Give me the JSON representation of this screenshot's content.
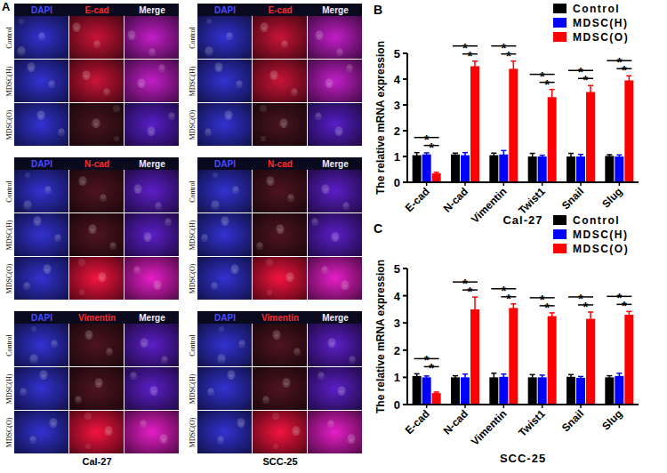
{
  "panel_labels": [
    "A",
    "B",
    "C"
  ],
  "panel_a": {
    "cell_lines": [
      "Cal-27",
      "SCC-25"
    ],
    "blocks": [
      {
        "columns": [
          "DAPI",
          "E-cad",
          "Merge"
        ],
        "rows": [
          "Control",
          "MDSC(H)",
          "MDSC(O)"
        ]
      },
      {
        "columns": [
          "DAPI",
          "N-cad",
          "Merge"
        ],
        "rows": [
          "Control",
          "MDSC(H)",
          "MDSC(O)"
        ]
      },
      {
        "columns": [
          "DAPI",
          "Vimentin",
          "Merge"
        ],
        "rows": [
          "Control",
          "MDSC(H)",
          "MDSC(O)"
        ]
      }
    ]
  },
  "chart_data": [
    {
      "type": "bar",
      "x_label": "Cal-27",
      "y_label": "The relative mRNA expression",
      "categories": [
        "E-cad",
        "N-cad",
        "Vimentin",
        "Twist1",
        "Snail",
        "Slug"
      ],
      "series": [
        {
          "name": "Control",
          "color": "#000000",
          "values": [
            1.05,
            1.08,
            1.05,
            1.0,
            1.0,
            1.02
          ],
          "errors": [
            0.1,
            0.05,
            0.08,
            0.12,
            0.12,
            0.05
          ]
        },
        {
          "name": "MDSC(H)",
          "color": "#0000ff",
          "values": [
            1.08,
            1.05,
            1.08,
            1.0,
            1.0,
            1.0
          ],
          "errors": [
            0.06,
            0.1,
            0.15,
            0.05,
            0.08,
            0.06
          ]
        },
        {
          "name": "MDSC(O)",
          "color": "#ff0000",
          "values": [
            0.35,
            4.5,
            4.4,
            3.3,
            3.5,
            3.95
          ],
          "errors": [
            0.04,
            0.2,
            0.3,
            0.3,
            0.25,
            0.18
          ]
        }
      ],
      "ylim": [
        0,
        5
      ],
      "yticks": [
        0,
        1,
        2,
        3,
        4,
        5
      ],
      "grid": false,
      "legend": "top-right",
      "significance": [
        {
          "category": "E-cad",
          "groups": [
            "MDSC(H)",
            "MDSC(O)"
          ],
          "label": "*"
        },
        {
          "category": "E-cad",
          "groups": [
            "Control",
            "MDSC(O)"
          ],
          "label": "*"
        },
        {
          "category": "N-cad",
          "groups": [
            "MDSC(H)",
            "MDSC(O)"
          ],
          "label": "*"
        },
        {
          "category": "N-cad",
          "groups": [
            "Control",
            "MDSC(O)"
          ],
          "label": "*"
        },
        {
          "category": "Vimentin",
          "groups": [
            "MDSC(H)",
            "MDSC(O)"
          ],
          "label": "*"
        },
        {
          "category": "Vimentin",
          "groups": [
            "Control",
            "MDSC(O)"
          ],
          "label": "*"
        },
        {
          "category": "Twist1",
          "groups": [
            "MDSC(H)",
            "MDSC(O)"
          ],
          "label": "*"
        },
        {
          "category": "Twist1",
          "groups": [
            "Control",
            "MDSC(O)"
          ],
          "label": "*"
        },
        {
          "category": "Snail",
          "groups": [
            "MDSC(H)",
            "MDSC(O)"
          ],
          "label": "*"
        },
        {
          "category": "Snail",
          "groups": [
            "Control",
            "MDSC(O)"
          ],
          "label": "*"
        },
        {
          "category": "Slug",
          "groups": [
            "MDSC(H)",
            "MDSC(O)"
          ],
          "label": "*"
        },
        {
          "category": "Slug",
          "groups": [
            "Control",
            "MDSC(O)"
          ],
          "label": "*"
        }
      ]
    },
    {
      "type": "bar",
      "x_label": "SCC-25",
      "y_label": "The relative mRNA expression",
      "categories": [
        "E-cad",
        "N-cad",
        "Vimentin",
        "Twist1",
        "Snail",
        "Slug"
      ],
      "series": [
        {
          "name": "Control",
          "color": "#000000",
          "values": [
            1.05,
            1.0,
            1.0,
            1.0,
            1.02,
            1.0
          ],
          "errors": [
            0.08,
            0.06,
            0.15,
            0.1,
            0.08,
            0.06
          ]
        },
        {
          "name": "MDSC(H)",
          "color": "#0000ff",
          "values": [
            1.0,
            1.0,
            1.02,
            1.0,
            0.98,
            1.05
          ],
          "errors": [
            0.05,
            0.12,
            0.1,
            0.08,
            0.05,
            0.1
          ]
        },
        {
          "name": "MDSC(O)",
          "color": "#ff0000",
          "values": [
            0.42,
            3.5,
            3.55,
            3.25,
            3.15,
            3.3
          ],
          "errors": [
            0.04,
            0.45,
            0.15,
            0.12,
            0.25,
            0.12
          ]
        }
      ],
      "ylim": [
        0,
        5
      ],
      "yticks": [
        0,
        1,
        2,
        3,
        4,
        5
      ],
      "grid": false,
      "legend": "top-right",
      "significance": [
        {
          "category": "E-cad",
          "groups": [
            "MDSC(H)",
            "MDSC(O)"
          ],
          "label": "*"
        },
        {
          "category": "E-cad",
          "groups": [
            "Control",
            "MDSC(O)"
          ],
          "label": "*"
        },
        {
          "category": "N-cad",
          "groups": [
            "MDSC(H)",
            "MDSC(O)"
          ],
          "label": "*"
        },
        {
          "category": "N-cad",
          "groups": [
            "Control",
            "MDSC(O)"
          ],
          "label": "*"
        },
        {
          "category": "Vimentin",
          "groups": [
            "MDSC(H)",
            "MDSC(O)"
          ],
          "label": "*"
        },
        {
          "category": "Vimentin",
          "groups": [
            "Control",
            "MDSC(O)"
          ],
          "label": "*"
        },
        {
          "category": "Twist1",
          "groups": [
            "MDSC(H)",
            "MDSC(O)"
          ],
          "label": "*"
        },
        {
          "category": "Twist1",
          "groups": [
            "Control",
            "MDSC(O)"
          ],
          "label": "*"
        },
        {
          "category": "Snail",
          "groups": [
            "MDSC(H)",
            "MDSC(O)"
          ],
          "label": "*"
        },
        {
          "category": "Snail",
          "groups": [
            "Control",
            "MDSC(O)"
          ],
          "label": "*"
        },
        {
          "category": "Slug",
          "groups": [
            "MDSC(H)",
            "MDSC(O)"
          ],
          "label": "*"
        },
        {
          "category": "Slug",
          "groups": [
            "Control",
            "MDSC(O)"
          ],
          "label": "*"
        }
      ]
    }
  ]
}
